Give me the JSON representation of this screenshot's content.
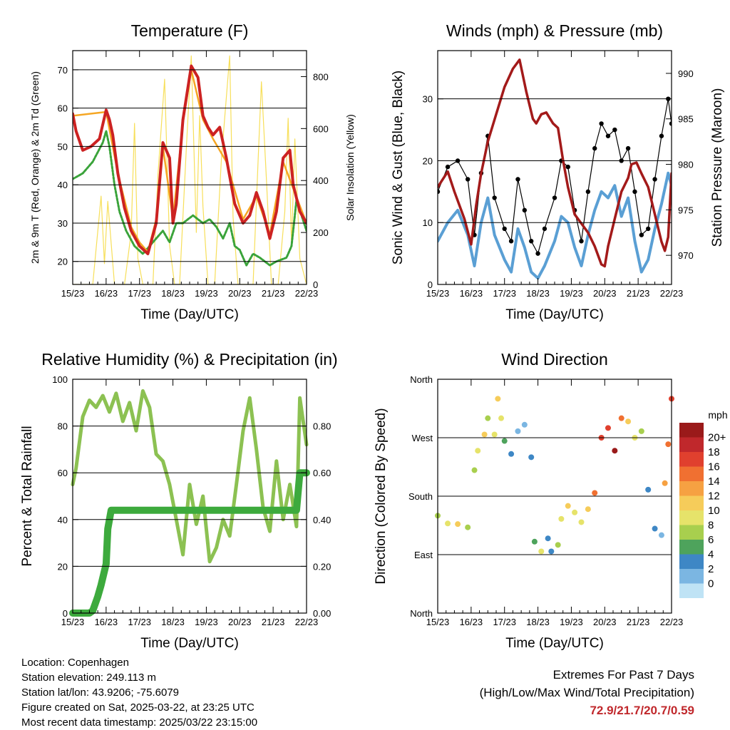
{
  "chart_data": [
    {
      "type": "line",
      "title": "Temperature (F)",
      "xlabel": "Time (Day/UTC)",
      "ylabel": "2m & 9m T (Red, Orange) & 2m Td (Green)",
      "y2label": "Solar Insolation (Yellow)",
      "x_ticks": [
        "15/23",
        "16/23",
        "17/23",
        "18/23",
        "19/23",
        "20/23",
        "21/23",
        "22/23"
      ],
      "ylim": [
        14,
        75
      ],
      "y_ticks": [
        20,
        30,
        40,
        50,
        60,
        70
      ],
      "y2lim": [
        0,
        900
      ],
      "y2_ticks": [
        0,
        200,
        400,
        600,
        800
      ],
      "grid": "horizontal",
      "series": [
        {
          "name": "2m T",
          "color": "#cc2222",
          "axis": "left",
          "x": [
            0,
            0.1,
            0.3,
            0.55,
            0.8,
            1.0,
            1.1,
            1.2,
            1.35,
            1.55,
            1.75,
            2.0,
            2.25,
            2.5,
            2.7,
            2.9,
            3.0,
            3.1,
            3.3,
            3.55,
            3.75,
            3.9,
            4.05,
            4.2,
            4.4,
            4.6,
            4.85,
            5.1,
            5.3,
            5.5,
            5.7,
            5.9,
            6.1,
            6.3,
            6.5,
            6.6,
            6.8,
            7.0
          ],
          "values": [
            58.5,
            54,
            49,
            50,
            52,
            59.5,
            57,
            53,
            43,
            34,
            28,
            24,
            22,
            30,
            51,
            47,
            30,
            35,
            57,
            71,
            68,
            58,
            55,
            53,
            55,
            47,
            35,
            30,
            32,
            38,
            33,
            26,
            33,
            47,
            49,
            40,
            33,
            30
          ]
        },
        {
          "name": "9m T",
          "color": "#f5a623",
          "axis": "left",
          "x": [
            0,
            1.0,
            1.35,
            1.75,
            2.0,
            2.25,
            2.5,
            2.7,
            3.0,
            3.3,
            3.55,
            3.9,
            4.2,
            4.6,
            5.1,
            5.5,
            5.9,
            6.3,
            6.6,
            7.0
          ],
          "values": [
            58,
            59,
            43,
            29,
            25,
            22.5,
            31,
            50,
            31,
            56,
            70,
            57,
            52,
            46,
            31,
            37,
            27,
            46,
            39,
            30
          ]
        },
        {
          "name": "2m Td",
          "color": "#3aa33a",
          "axis": "left",
          "x": [
            0,
            0.3,
            0.6,
            0.9,
            1.0,
            1.1,
            1.25,
            1.4,
            1.6,
            1.85,
            2.1,
            2.3,
            2.5,
            2.7,
            2.9,
            3.1,
            3.3,
            3.6,
            3.9,
            4.1,
            4.3,
            4.5,
            4.7,
            4.85,
            5.0,
            5.2,
            5.4,
            5.6,
            5.9,
            6.1,
            6.4,
            6.55,
            6.7,
            6.85,
            7.0
          ],
          "values": [
            41.5,
            43,
            46,
            51,
            54,
            50,
            40,
            33,
            28,
            24,
            22,
            24,
            26,
            28,
            25,
            30,
            30,
            32,
            30,
            31,
            29,
            26,
            30,
            24,
            23,
            19,
            22,
            21,
            19,
            20,
            21,
            24,
            36,
            32,
            28
          ]
        },
        {
          "name": "Solar Insolation",
          "color": "#f7df5a",
          "axis": "right",
          "x": [
            0,
            0.6,
            0.85,
            0.95,
            1.05,
            1.25,
            1.55,
            1.75,
            1.85,
            1.95,
            2.1,
            2.4,
            2.55,
            2.75,
            2.9,
            3.05,
            3.2,
            3.4,
            3.55,
            3.7,
            3.8,
            3.9,
            4.05,
            4.25,
            4.45,
            4.6,
            4.7,
            4.8,
            4.95,
            5.15,
            5.4,
            5.55,
            5.65,
            5.8,
            5.95,
            6.15,
            6.35,
            6.45,
            6.55,
            6.65,
            6.8,
            7.0
          ],
          "values": [
            0,
            0,
            340,
            80,
            320,
            0,
            0,
            200,
            620,
            100,
            0,
            0,
            420,
            790,
            150,
            0,
            0,
            520,
            880,
            200,
            650,
            300,
            0,
            0,
            480,
            720,
            880,
            260,
            0,
            0,
            0,
            480,
            780,
            400,
            0,
            0,
            280,
            640,
            150,
            560,
            100,
            0
          ]
        }
      ]
    },
    {
      "type": "line",
      "title": "Winds (mph) & Pressure (mb)",
      "xlabel": "Time (Day/UTC)",
      "ylabel": "Sonic Wind & Gust (Blue, Black)",
      "y2label": "Station Pressure (Maroon)",
      "x_ticks": [
        "15/23",
        "16/23",
        "17/23",
        "18/23",
        "19/23",
        "20/23",
        "21/23",
        "22/23"
      ],
      "ylim": [
        0,
        37.8
      ],
      "y_ticks": [
        0,
        10,
        20,
        30
      ],
      "y2lim": [
        966.8,
        992.5
      ],
      "y2_ticks": [
        970,
        975,
        980,
        985,
        990
      ],
      "grid": "horizontal",
      "series": [
        {
          "name": "Sonic Wind",
          "color": "#5a9fd4",
          "axis": "left",
          "x": [
            0,
            0.3,
            0.6,
            0.9,
            1.1,
            1.3,
            1.5,
            1.7,
            2.0,
            2.2,
            2.4,
            2.6,
            2.8,
            3.0,
            3.2,
            3.5,
            3.7,
            3.9,
            4.1,
            4.3,
            4.5,
            4.7,
            4.9,
            5.1,
            5.3,
            5.5,
            5.7,
            5.9,
            6.1,
            6.3,
            6.5,
            6.7,
            6.9,
            7.0
          ],
          "values": [
            7,
            10,
            12,
            8,
            3,
            10,
            14,
            8,
            4,
            2,
            9,
            6,
            2,
            1,
            3,
            7,
            11,
            10,
            6,
            3,
            8,
            12,
            15,
            14,
            16,
            11,
            14,
            7,
            2,
            4,
            9,
            13,
            18,
            16
          ]
        },
        {
          "name": "Gust",
          "color": "#000000",
          "axis": "left",
          "x": [
            0,
            0.3,
            0.6,
            0.9,
            1.1,
            1.3,
            1.5,
            1.7,
            2.0,
            2.2,
            2.4,
            2.6,
            2.8,
            3.0,
            3.2,
            3.5,
            3.7,
            3.9,
            4.1,
            4.3,
            4.5,
            4.7,
            4.9,
            5.1,
            5.3,
            5.5,
            5.7,
            5.9,
            6.1,
            6.3,
            6.5,
            6.7,
            6.9,
            7.0
          ],
          "values": [
            15,
            19,
            20,
            17,
            8,
            18,
            24,
            14,
            9,
            7,
            17,
            12,
            7,
            5,
            9,
            14,
            20,
            19,
            12,
            7,
            15,
            22,
            26,
            24,
            25,
            20,
            22,
            15,
            8,
            9,
            17,
            24,
            30,
            26
          ]
        },
        {
          "name": "Station Pressure",
          "color": "#a31a1a",
          "axis": "right",
          "x": [
            0,
            0.3,
            0.5,
            0.8,
            1.0,
            1.15,
            1.3,
            1.5,
            1.75,
            2.0,
            2.25,
            2.45,
            2.65,
            2.85,
            2.95,
            3.1,
            3.25,
            3.45,
            3.6,
            3.75,
            3.9,
            4.1,
            4.3,
            4.5,
            4.7,
            4.9,
            5.0,
            5.1,
            5.3,
            5.5,
            5.7,
            5.8,
            5.95,
            6.1,
            6.3,
            6.5,
            6.7,
            6.8,
            6.9,
            7.0
          ],
          "values": [
            977.5,
            979.2,
            977,
            974,
            971.2,
            975.5,
            979,
            982.5,
            985.5,
            988.5,
            990.5,
            991.5,
            988,
            985,
            984.5,
            985.5,
            985.7,
            984.5,
            984,
            980.5,
            977.5,
            974.5,
            973.5,
            972.5,
            971,
            969,
            968.8,
            971,
            974,
            977,
            978.5,
            980,
            980.2,
            979,
            977.5,
            974.5,
            971.5,
            970.5,
            972,
            979
          ]
        }
      ]
    },
    {
      "type": "line",
      "title": "Relative Humidity (%) & Precipitation (in)",
      "xlabel": "Time (Day/UTC)",
      "ylabel": "Percent & Total Rainfall",
      "x_ticks": [
        "15/23",
        "16/23",
        "17/23",
        "18/23",
        "19/23",
        "20/23",
        "21/23",
        "22/23"
      ],
      "ylim": [
        0,
        100
      ],
      "y_ticks": [
        0,
        20,
        40,
        60,
        80,
        100
      ],
      "y2lim": [
        0,
        1.0
      ],
      "y2_ticks": [
        "0.00",
        "0.20",
        "0.40",
        "0.60",
        "0.80"
      ],
      "grid": "horizontal",
      "series": [
        {
          "name": "Relative Humidity",
          "color": "#8cc152",
          "axis": "left",
          "x": [
            0,
            0.1,
            0.3,
            0.5,
            0.7,
            0.9,
            1.1,
            1.3,
            1.5,
            1.7,
            1.9,
            2.1,
            2.3,
            2.5,
            2.7,
            2.9,
            3.1,
            3.3,
            3.5,
            3.7,
            3.9,
            4.1,
            4.3,
            4.5,
            4.7,
            4.9,
            5.1,
            5.3,
            5.5,
            5.7,
            5.9,
            6.1,
            6.3,
            6.5,
            6.7,
            6.8,
            6.9,
            7.0
          ],
          "values": [
            55,
            62,
            84,
            91,
            88,
            93,
            86,
            94,
            82,
            90,
            78,
            95,
            88,
            68,
            65,
            55,
            40,
            25,
            55,
            38,
            50,
            22,
            28,
            40,
            33,
            55,
            78,
            92,
            70,
            45,
            35,
            65,
            40,
            55,
            37,
            92,
            82,
            72
          ]
        },
        {
          "name": "Total Precipitation",
          "color": "#3daa3d",
          "axis": "right",
          "x": [
            0,
            0.5,
            0.6,
            0.75,
            0.85,
            0.95,
            1.0,
            1.05,
            1.15,
            6.7,
            6.8,
            7.0
          ],
          "values": [
            0,
            0,
            0.01,
            0.07,
            0.12,
            0.18,
            0.21,
            0.36,
            0.44,
            0.44,
            0.6,
            0.6
          ]
        }
      ]
    },
    {
      "type": "scatter",
      "title": "Wind Direction",
      "xlabel": "Time (Day/UTC)",
      "ylabel": "Direction (Colored By Speed)",
      "x_ticks": [
        "15/23",
        "16/23",
        "17/23",
        "18/23",
        "19/23",
        "20/23",
        "21/23",
        "22/23"
      ],
      "y_tick_labels": [
        "North",
        "East",
        "South",
        "West",
        "North"
      ],
      "ylim": [
        0,
        360
      ],
      "grid": "horizontal",
      "colorbar": {
        "title": "mph",
        "labels": [
          "20+",
          "18",
          "16",
          "14",
          "12",
          "10",
          "8",
          "6",
          "4",
          "2",
          "0"
        ],
        "colors": [
          "#9a1a1a",
          "#c0282c",
          "#e0402e",
          "#f07031",
          "#f6a142",
          "#f6cc5a",
          "#e6e36a",
          "#a8cf4e",
          "#4ea35c",
          "#3e87c5",
          "#7bb6e2",
          "#bfe3f5"
        ]
      },
      "x": [
        0,
        0.3,
        0.6,
        0.9,
        1.1,
        1.2,
        1.4,
        1.5,
        1.7,
        1.8,
        1.9,
        2.0,
        2.2,
        2.4,
        2.6,
        2.8,
        2.9,
        3.1,
        3.3,
        3.4,
        3.6,
        3.7,
        3.9,
        4.1,
        4.3,
        4.5,
        4.7,
        4.9,
        5.1,
        5.3,
        5.5,
        5.7,
        5.9,
        6.1,
        6.3,
        6.5,
        6.7,
        6.8,
        6.9,
        7.0
      ],
      "values": [
        150,
        138,
        137,
        132,
        220,
        250,
        275,
        300,
        275,
        330,
        300,
        265,
        245,
        280,
        290,
        240,
        110,
        95,
        115,
        95,
        105,
        145,
        165,
        155,
        140,
        160,
        185,
        270,
        285,
        250,
        300,
        295,
        270,
        280,
        190,
        130,
        120,
        200,
        260,
        330
      ],
      "speeds": [
        8,
        10,
        12,
        9,
        8,
        10,
        12,
        8,
        10,
        12,
        10,
        6,
        4,
        2,
        3,
        4,
        6,
        10,
        4,
        4,
        8,
        10,
        12,
        10,
        10,
        12,
        16,
        18,
        18,
        20,
        16,
        12,
        10,
        8,
        4,
        4,
        2,
        14,
        16,
        18
      ]
    }
  ],
  "info": {
    "location": "Location: Copenhagen",
    "elevation": "Station elevation: 249.113 m",
    "latlon": "Station lat/lon: 43.9206; -75.6079",
    "created": "Figure created on Sat, 2025-03-22, at 23:25 UTC",
    "recent": "Most recent data timestamp: 2025/03/22 23:15:00"
  },
  "extremes": {
    "title": "Extremes For Past 7 Days",
    "subtitle": "(High/Low/Max Wind/Total Precipitation)",
    "values": "72.9/21.7/20.7/0.59"
  }
}
